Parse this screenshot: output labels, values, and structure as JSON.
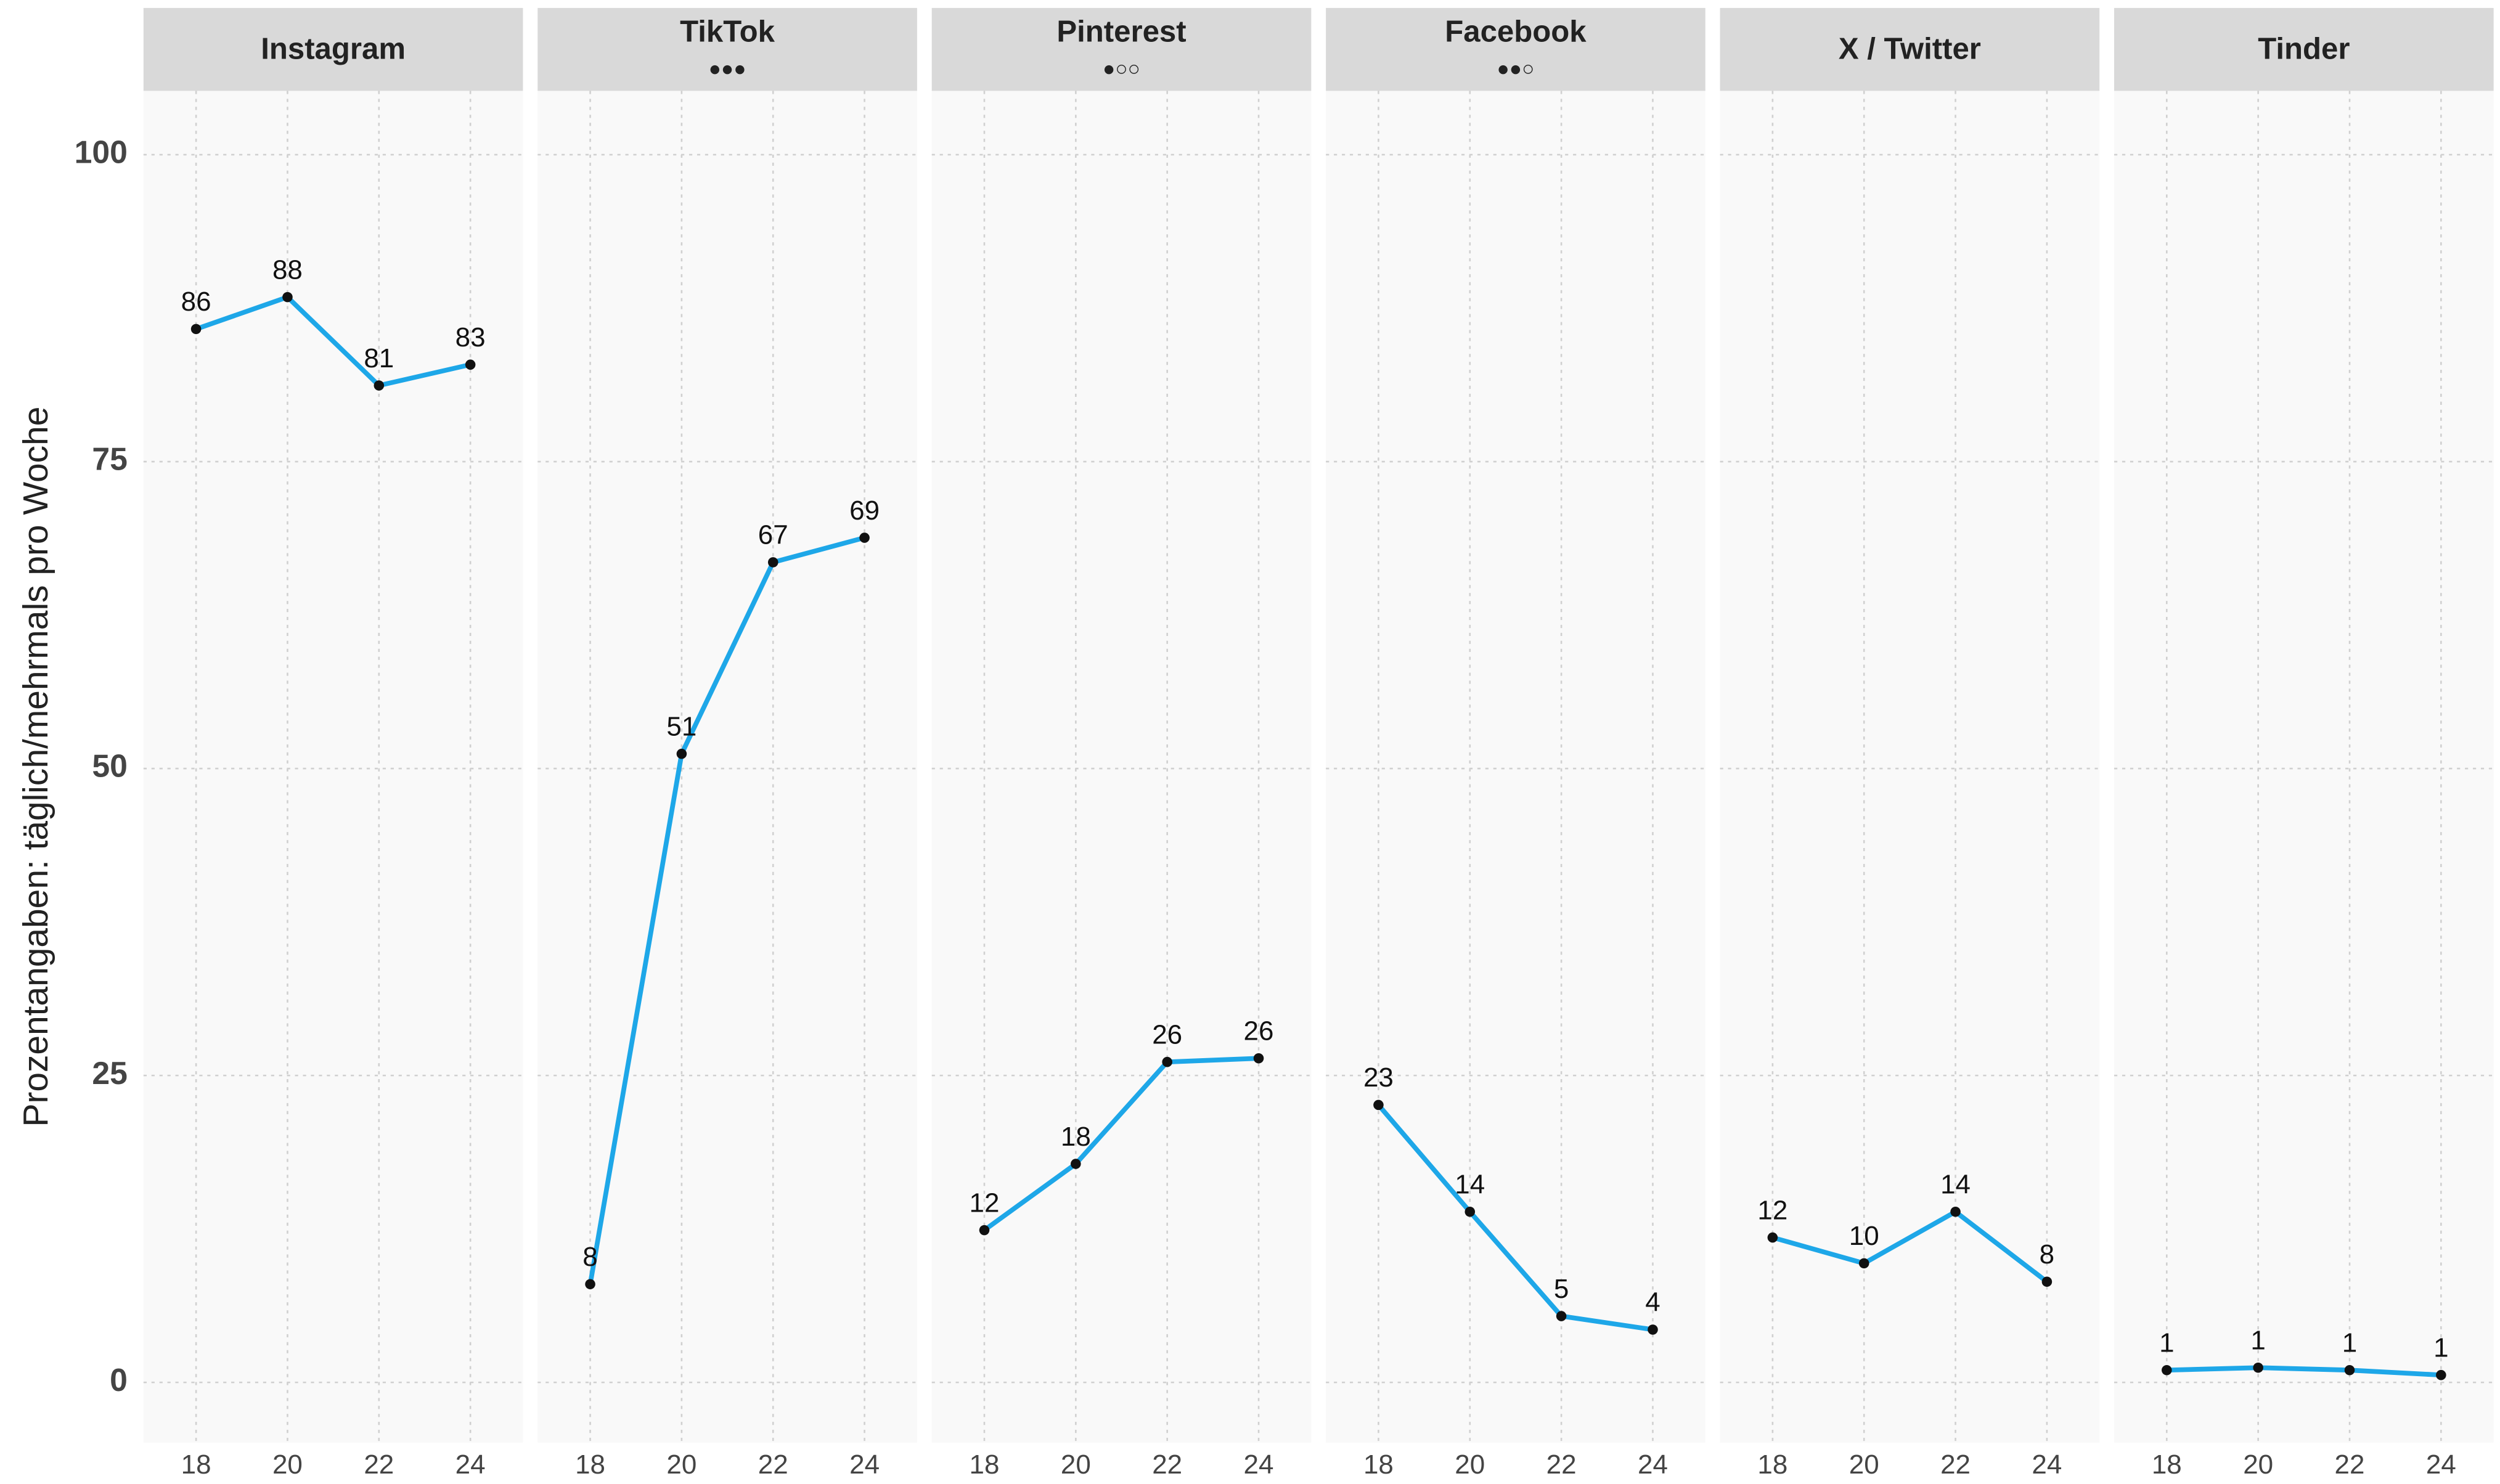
{
  "y_axis": {
    "label": "Prozentangaben: täglich/mehrmals pro Woche",
    "ylim": [
      -4.9,
      105.2
    ],
    "yticks": [
      0,
      25,
      50,
      75,
      100
    ]
  },
  "chart_data": [
    {
      "type": "line",
      "title": "Instagram",
      "x": [
        18,
        20,
        22,
        24
      ],
      "values": [
        85.8,
        88.4,
        81.2,
        82.9
      ],
      "value_labels": [
        "86",
        "88",
        "81",
        "83"
      ],
      "color": "#1ea7e8",
      "xlim": [
        16.85,
        25.15
      ],
      "xticks": [
        18,
        20,
        22,
        24
      ],
      "grid": true
    },
    {
      "type": "line",
      "title": "TikTok",
      "subtitle": "●●●",
      "x": [
        18,
        20,
        22,
        24
      ],
      "values": [
        8.0,
        51.2,
        66.8,
        68.8
      ],
      "value_labels": [
        "8",
        "51",
        "67",
        "69"
      ],
      "color": "#1ea7e8",
      "xlim": [
        16.85,
        25.15
      ],
      "xticks": [
        18,
        20,
        22,
        24
      ],
      "grid": true
    },
    {
      "type": "line",
      "title": "Pinterest",
      "subtitle": "●○○",
      "x": [
        18,
        20,
        22,
        24
      ],
      "values": [
        12.4,
        17.8,
        26.1,
        26.4
      ],
      "value_labels": [
        "12",
        "18",
        "26",
        "26"
      ],
      "color": "#1ea7e8",
      "xlim": [
        16.85,
        25.15
      ],
      "xticks": [
        18,
        20,
        22,
        24
      ],
      "grid": true
    },
    {
      "type": "line",
      "title": "Facebook",
      "subtitle": "●●○",
      "x": [
        18,
        20,
        22,
        24
      ],
      "values": [
        22.6,
        13.9,
        5.4,
        4.3
      ],
      "value_labels": [
        "23",
        "14",
        "5",
        "4"
      ],
      "color": "#1ea7e8",
      "xlim": [
        16.85,
        25.15
      ],
      "xticks": [
        18,
        20,
        22,
        24
      ],
      "grid": true
    },
    {
      "type": "line",
      "title": "X / Twitter",
      "x": [
        18,
        20,
        22,
        24
      ],
      "values": [
        11.8,
        9.7,
        13.9,
        8.2
      ],
      "value_labels": [
        "12",
        "10",
        "14",
        "8"
      ],
      "color": "#1ea7e8",
      "xlim": [
        16.85,
        25.15
      ],
      "xticks": [
        18,
        20,
        22,
        24
      ],
      "grid": true
    },
    {
      "type": "line",
      "title": "Tinder",
      "x": [
        18,
        20,
        22,
        24
      ],
      "values": [
        1.0,
        1.2,
        1.0,
        0.6
      ],
      "value_labels": [
        "1",
        "1",
        "1",
        "1"
      ],
      "color": "#1ea7e8",
      "xlim": [
        16.85,
        25.15
      ],
      "xticks": [
        18,
        20,
        22,
        24
      ],
      "grid": true
    }
  ]
}
